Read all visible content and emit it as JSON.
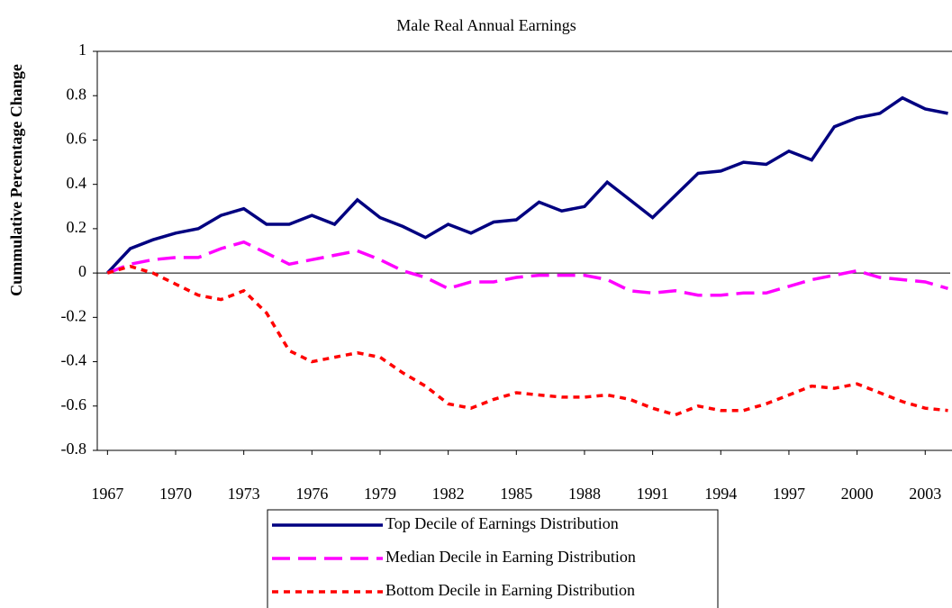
{
  "chart_data": {
    "type": "line",
    "title": "Male Real Annual Earnings",
    "y_label": "Cummulative Percentage Change",
    "x": [
      1967,
      1968,
      1969,
      1970,
      1971,
      1972,
      1973,
      1974,
      1975,
      1976,
      1977,
      1978,
      1979,
      1980,
      1981,
      1982,
      1983,
      1984,
      1985,
      1986,
      1987,
      1988,
      1989,
      1990,
      1991,
      1992,
      1993,
      1994,
      1995,
      1996,
      1997,
      1998,
      1999,
      2000,
      2001,
      2002,
      2003,
      2004
    ],
    "series": [
      {
        "name": "Top Decile of Earnings Distribution",
        "color": "#000080",
        "style": "solid",
        "values": [
          0,
          0.11,
          0.15,
          0.18,
          0.2,
          0.26,
          0.29,
          0.22,
          0.22,
          0.26,
          0.22,
          0.33,
          0.25,
          0.21,
          0.16,
          0.22,
          0.18,
          0.23,
          0.24,
          0.32,
          0.28,
          0.3,
          0.41,
          0.33,
          0.25,
          0.35,
          0.45,
          0.46,
          0.5,
          0.49,
          0.55,
          0.51,
          0.66,
          0.7,
          0.72,
          0.79,
          0.74,
          0.72
        ]
      },
      {
        "name": "Median Decile in Earning Distribution",
        "color": "#ff00ff",
        "style": "dashed",
        "values": [
          0,
          0.04,
          0.06,
          0.07,
          0.07,
          0.11,
          0.14,
          0.09,
          0.04,
          0.06,
          0.08,
          0.1,
          0.06,
          0.01,
          -0.02,
          -0.07,
          -0.04,
          -0.04,
          -0.02,
          -0.01,
          -0.01,
          -0.01,
          -0.03,
          -0.08,
          -0.09,
          -0.08,
          -0.1,
          -0.1,
          -0.09,
          -0.09,
          -0.06,
          -0.03,
          -0.01,
          0.01,
          -0.02,
          -0.03,
          -0.04,
          -0.07
        ]
      },
      {
        "name": "Bottom Decile in Earning Distribution",
        "color": "#ff0000",
        "style": "dotted",
        "values": [
          0,
          0.03,
          0,
          -0.05,
          -0.1,
          -0.12,
          -0.08,
          -0.18,
          -0.35,
          -0.4,
          -0.38,
          -0.36,
          -0.38,
          -0.45,
          -0.51,
          -0.59,
          -0.61,
          -0.57,
          -0.54,
          -0.55,
          -0.56,
          -0.56,
          -0.55,
          -0.57,
          -0.61,
          -0.64,
          -0.6,
          -0.62,
          -0.62,
          -0.59,
          -0.55,
          -0.51,
          -0.52,
          -0.5,
          -0.54,
          -0.58,
          -0.61,
          -0.62
        ]
      }
    ],
    "xlim": [
      1966.55,
      2004.1
    ],
    "xticks": [
      1967,
      1970,
      1973,
      1976,
      1979,
      1982,
      1985,
      1988,
      1991,
      1994,
      1997,
      2000,
      2003
    ],
    "ylim": [
      -0.8,
      1
    ],
    "yticks": [
      -0.8,
      -0.6,
      -0.4,
      -0.2,
      0,
      0.2,
      0.4,
      0.6,
      0.8,
      1
    ],
    "grid": false,
    "legend": "bottom"
  }
}
